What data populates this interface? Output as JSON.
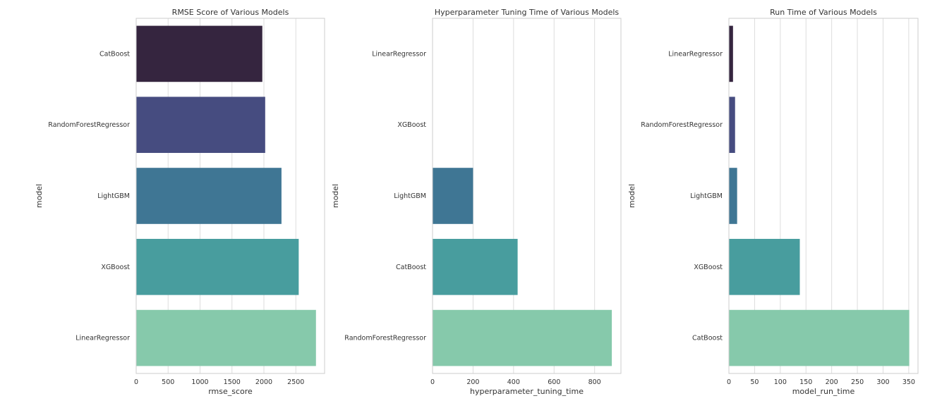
{
  "chart_data": [
    {
      "type": "bar",
      "orientation": "horizontal",
      "title": "RMSE Score of Various Models",
      "xlabel": "rmse_score",
      "ylabel": "model",
      "categories": [
        "CatBoost",
        "RandomForestRegressor",
        "LightGBM",
        "XGBoost",
        "LinearRegressor"
      ],
      "values": [
        1975,
        2020,
        2275,
        2545,
        2815
      ],
      "xlim": [
        0,
        2950
      ],
      "xticks": [
        0,
        500,
        1000,
        1500,
        2000,
        2500
      ],
      "grid": true,
      "legend": "none"
    },
    {
      "type": "bar",
      "orientation": "horizontal",
      "title": "Hyperparameter Tuning Time of Various Models",
      "xlabel": "hyperparameter_tuning_time",
      "ylabel": "model",
      "categories": [
        "LinearRegressor",
        "XGBoost",
        "LightGBM",
        "CatBoost",
        "RandomForestRegressor"
      ],
      "values": [
        0,
        0,
        200,
        420,
        885
      ],
      "xlim": [
        0,
        930
      ],
      "xticks": [
        0,
        200,
        400,
        600,
        800
      ],
      "grid": true,
      "legend": "none"
    },
    {
      "type": "bar",
      "orientation": "horizontal",
      "title": "Run Time of Various Models",
      "xlabel": "model_run_time",
      "ylabel": "model",
      "categories": [
        "LinearRegressor",
        "RandomForestRegressor",
        "LightGBM",
        "XGBoost",
        "CatBoost"
      ],
      "values": [
        8,
        12,
        16,
        138,
        351
      ],
      "xlim": [
        0,
        368
      ],
      "xticks": [
        0,
        50,
        100,
        150,
        200,
        250,
        300,
        350
      ],
      "grid": true,
      "legend": "none"
    }
  ],
  "palette": [
    "#35253f",
    "#464c80",
    "#3f7694",
    "#489d9e",
    "#86c9ab"
  ],
  "colors": {
    "grid": "#dddddd",
    "spine": "#cccccc",
    "text": "#333333",
    "background": "#ffffff"
  }
}
